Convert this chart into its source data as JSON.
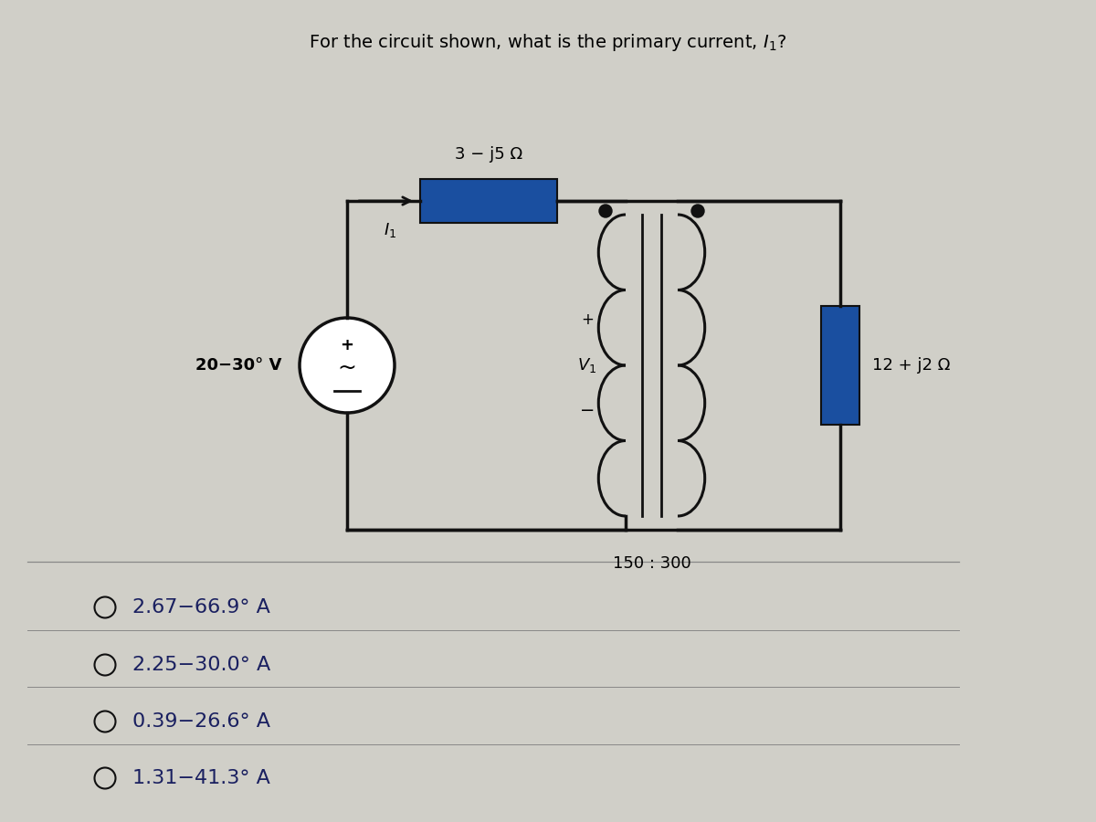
{
  "title": "For the circuit shown, what is the primary current, $I_1$?",
  "title_fontsize": 14,
  "bg_color": "#d0cfc8",
  "impedance_color": "#1a4fa0",
  "wire_color": "#111111",
  "options": [
    "2.67−66.9° A",
    "2.25−30.0° A",
    "0.39−26.6° A",
    "1.31−41.3° A"
  ],
  "option_fontsize": 16,
  "series_impedance_label": "3 − j5 Ω",
  "source_label": "20−30° V",
  "v1_label": "$V_1$",
  "load_label": "12 + j2 Ω",
  "turns_ratio": "150 : 300",
  "current_label": "$I_1$"
}
